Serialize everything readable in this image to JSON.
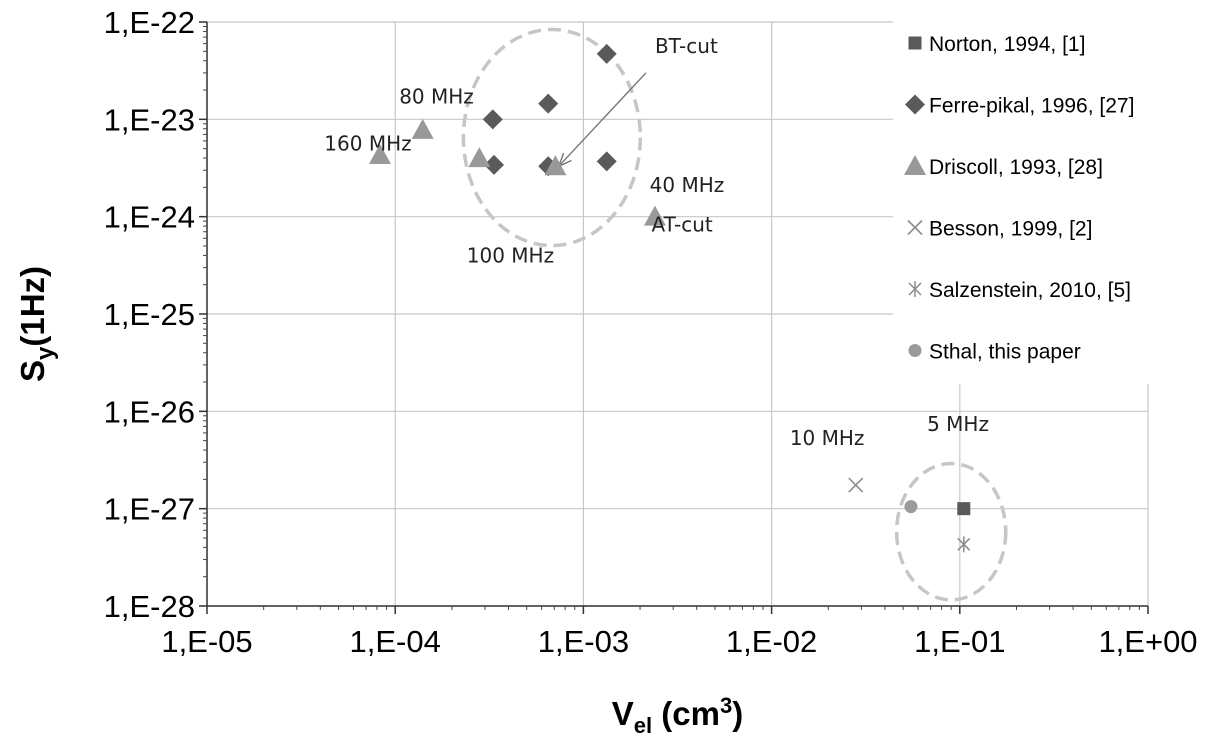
{
  "chart_data": {
    "type": "scatter",
    "x_scale": "log",
    "y_scale": "log",
    "xlim": [
      1e-05,
      1
    ],
    "ylim": [
      1e-28,
      1e-22
    ],
    "grid": true,
    "legend_position": "right",
    "x_tick_labels": [
      "1,E-05",
      "1,E-04",
      "1,E-03",
      "1,E-02",
      "1,E-01",
      "1,E+00"
    ],
    "y_tick_labels": [
      "1,E-28",
      "1,E-27",
      "1,E-26",
      "1,E-25",
      "1,E-24",
      "1,E-23",
      "1,E-22"
    ],
    "x_title": {
      "main": "V",
      "sub": "el",
      "unit": " (cm",
      "sup": "3",
      "close": ")"
    },
    "y_title": {
      "main": "S",
      "sub": "y",
      "rest": "(1Hz)"
    },
    "series": [
      {
        "name": "Norton, 1994, [1]",
        "marker": "square",
        "color": "#5a5a5a",
        "points": [
          {
            "x": 0.105,
            "y": 1e-27
          }
        ]
      },
      {
        "name": "Ferre-pikal, 1996, [27]",
        "marker": "diamond",
        "color": "#5a5a5a",
        "points": [
          {
            "x": 0.00133,
            "y": 4.7e-23
          },
          {
            "x": 0.00065,
            "y": 1.45e-23
          },
          {
            "x": 0.00033,
            "y": 1e-23
          },
          {
            "x": 0.000335,
            "y": 3.4e-24
          },
          {
            "x": 0.00065,
            "y": 3.3e-24
          },
          {
            "x": 0.00133,
            "y": 3.7e-24
          }
        ]
      },
      {
        "name": "Driscoll, 1993, [28]",
        "marker": "triangle",
        "color": "#999999",
        "points": [
          {
            "x": 8.3e-05,
            "y": 4.3e-24
          },
          {
            "x": 0.00014,
            "y": 7.8e-24
          },
          {
            "x": 0.00028,
            "y": 4e-24
          },
          {
            "x": 0.00071,
            "y": 3.3e-24
          },
          {
            "x": 0.0024,
            "y": 1e-24
          }
        ]
      },
      {
        "name": "Besson, 1999, [2]",
        "marker": "x",
        "color": "#8c8c8c",
        "points": [
          {
            "x": 0.028,
            "y": 1.75e-27
          }
        ]
      },
      {
        "name": "Salzenstein, 2010, [5]",
        "marker": "star",
        "color": "#8c8c8c",
        "points": [
          {
            "x": 0.105,
            "y": 4.3e-28
          }
        ]
      },
      {
        "name": "Sthal, this paper",
        "marker": "circle",
        "color": "#9a9a9a",
        "points": [
          {
            "x": 0.055,
            "y": 1.05e-27
          }
        ]
      }
    ],
    "annotations": [
      {
        "text": "80 MHz",
        "x": 0.000105,
        "y": 1.45e-23
      },
      {
        "text": "160 MHz",
        "x": 4.2e-05,
        "y": 4.8e-24
      },
      {
        "text": "BT-cut",
        "x": 0.0024,
        "y": 4.8e-23
      },
      {
        "text": "40 MHz",
        "x": 0.00225,
        "y": 1.8e-24
      },
      {
        "text": "AT-cut",
        "x": 0.0023,
        "y": 7e-25
      },
      {
        "text": "100 MHz",
        "x": 0.00024,
        "y": 3.4e-25
      },
      {
        "text": "10 MHz",
        "x": 0.0125,
        "y": 4.5e-27
      },
      {
        "text": "5 MHz",
        "x": 0.067,
        "y": 6.3e-27
      }
    ],
    "arrow": {
      "from": {
        "x": 0.00215,
        "y": 3e-23
      },
      "to": {
        "x": 0.00074,
        "y": 3.3e-24
      }
    },
    "ellipses": [
      {
        "cx": 0.00068,
        "cy": 6.5e-24,
        "rx_decades": 0.47,
        "ry_decades": 1.11
      },
      {
        "cx": 0.09,
        "cy": 5.8e-28,
        "rx_decades": 0.29,
        "ry_decades": 0.7
      }
    ]
  }
}
